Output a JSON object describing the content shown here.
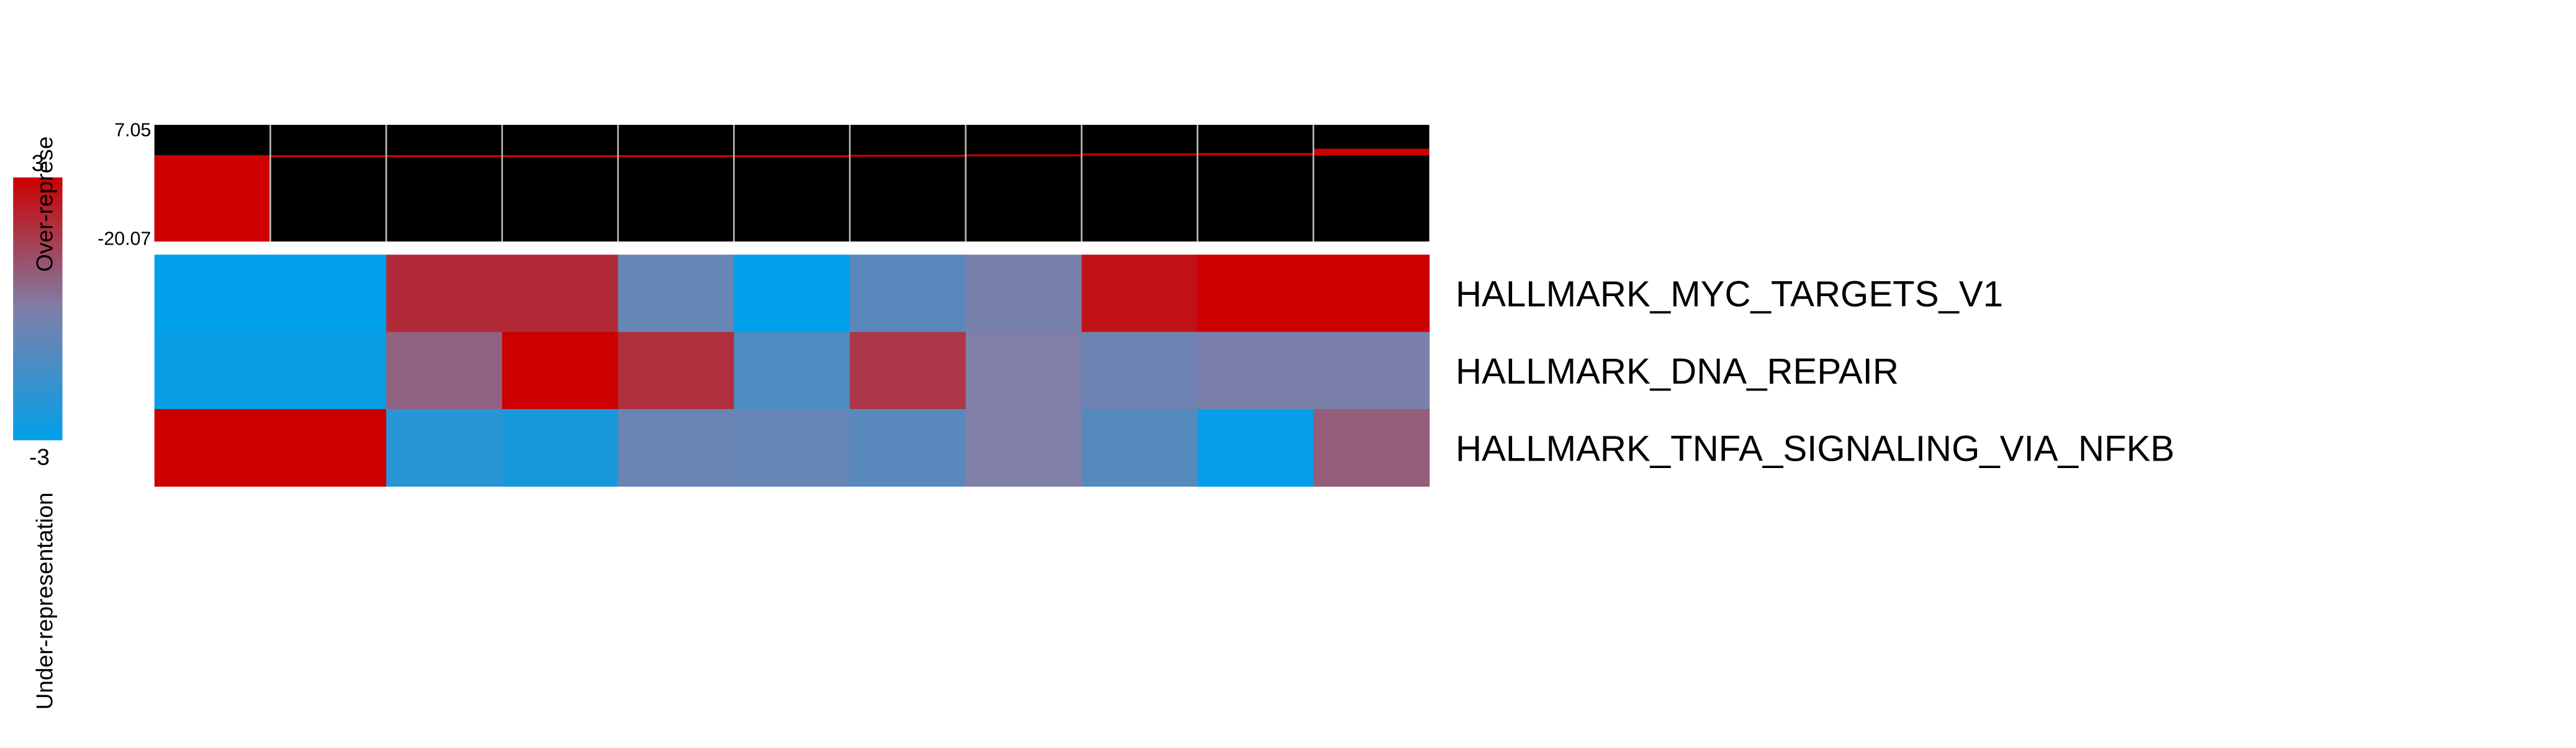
{
  "chart_data": {
    "type": "heatmap",
    "legend": {
      "max_label": "3",
      "min_label": "-3",
      "top_caption": "Over-represe",
      "bottom_caption": "Under-representation",
      "color_min": "#00a0ea",
      "color_mid": "#7f7fa8",
      "color_max": "#cc0000",
      "value_range": [
        -3,
        3
      ]
    },
    "top_bar": {
      "max_label": "7.05",
      "min_label": "-20.07",
      "range": [
        -20.07,
        7.05
      ],
      "bar_color": "#cc0000",
      "background_color": "#000000",
      "grid_color": "#bbbbbb",
      "values": [
        -20.07,
        -0.2,
        -0.12,
        -0.1,
        -0.07,
        -0.05,
        0.1,
        0.2,
        0.4,
        0.5,
        1.5
      ]
    },
    "heatmap": {
      "columns": 11,
      "rows": [
        {
          "name": "HALLMARK_MYC_TARGETS_V1",
          "values": [
            -3,
            -3,
            2.0,
            2.0,
            -0.6,
            -3,
            -0.9,
            -0.2,
            2.6,
            3,
            3
          ]
        },
        {
          "name": "HALLMARK_DNA_REPAIR",
          "values": [
            -2.8,
            -2.8,
            0.7,
            3,
            1.9,
            -1.2,
            1.7,
            0,
            -0.4,
            -0.1,
            -0.1
          ]
        },
        {
          "name": "HALLMARK_TNFA_SIGNALING_VIA_NFKB",
          "values": [
            3,
            3,
            -2.0,
            -2.4,
            -0.5,
            -0.6,
            -0.9,
            0,
            -1.0,
            -2.9,
            0.8
          ]
        }
      ]
    }
  }
}
